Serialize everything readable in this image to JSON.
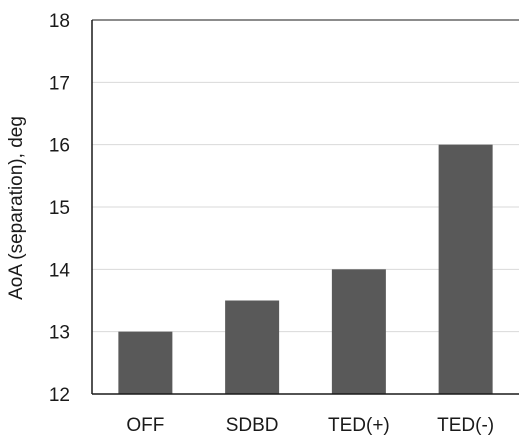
{
  "chart_data": {
    "type": "bar",
    "title": "",
    "xlabel": "",
    "ylabel": "AoA (separation), deg",
    "categories": [
      "OFF",
      "SDBD",
      "TED(+)",
      "TED(-)"
    ],
    "values": [
      13,
      13.5,
      14,
      16
    ],
    "ylim": [
      12,
      18
    ],
    "yticks": [
      12,
      13,
      14,
      15,
      16,
      17,
      18
    ],
    "grid": true,
    "legend": "none",
    "colors": {
      "bar": "#595959",
      "grid": "#d9d9d9",
      "axis": "#1a1a1a"
    }
  }
}
